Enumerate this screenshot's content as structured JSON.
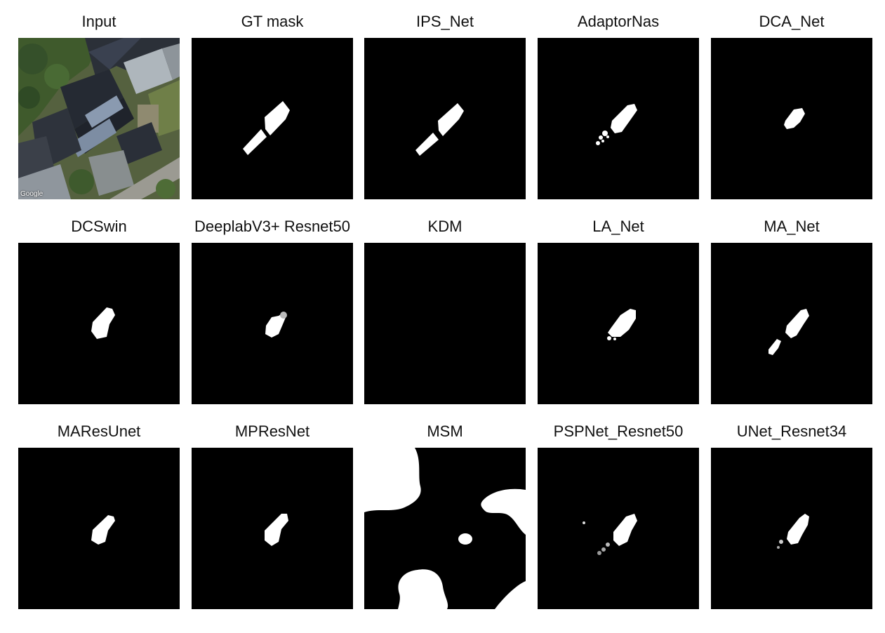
{
  "figure": {
    "panels": [
      {
        "id": "input",
        "title": "Input",
        "kind": "satellite-image",
        "credit": "Google"
      },
      {
        "id": "gt",
        "title": "GT mask",
        "kind": "mask"
      },
      {
        "id": "ips",
        "title": "IPS_Net",
        "kind": "mask"
      },
      {
        "id": "adaptornas",
        "title": "AdaptorNas",
        "kind": "mask"
      },
      {
        "id": "dca",
        "title": "DCA_Net",
        "kind": "mask"
      },
      {
        "id": "dcswin",
        "title": "DCSwin",
        "kind": "mask"
      },
      {
        "id": "deeplab",
        "title": "DeeplabV3+ Resnet50",
        "kind": "mask"
      },
      {
        "id": "kdm",
        "title": "KDM",
        "kind": "mask"
      },
      {
        "id": "la",
        "title": "LA_Net",
        "kind": "mask"
      },
      {
        "id": "ma",
        "title": "MA_Net",
        "kind": "mask"
      },
      {
        "id": "maresunet",
        "title": "MAResUnet",
        "kind": "mask"
      },
      {
        "id": "mpresnet",
        "title": "MPResNet",
        "kind": "mask"
      },
      {
        "id": "msm",
        "title": "MSM",
        "kind": "mask"
      },
      {
        "id": "pspnet",
        "title": "PSPNet_Resnet50",
        "kind": "mask"
      },
      {
        "id": "unet",
        "title": "UNet_Resnet34",
        "kind": "mask"
      }
    ]
  },
  "colors": {
    "mask_background": "#000000",
    "mask_foreground": "#ffffff",
    "title_text": "#111111",
    "page_background": "#ffffff"
  }
}
